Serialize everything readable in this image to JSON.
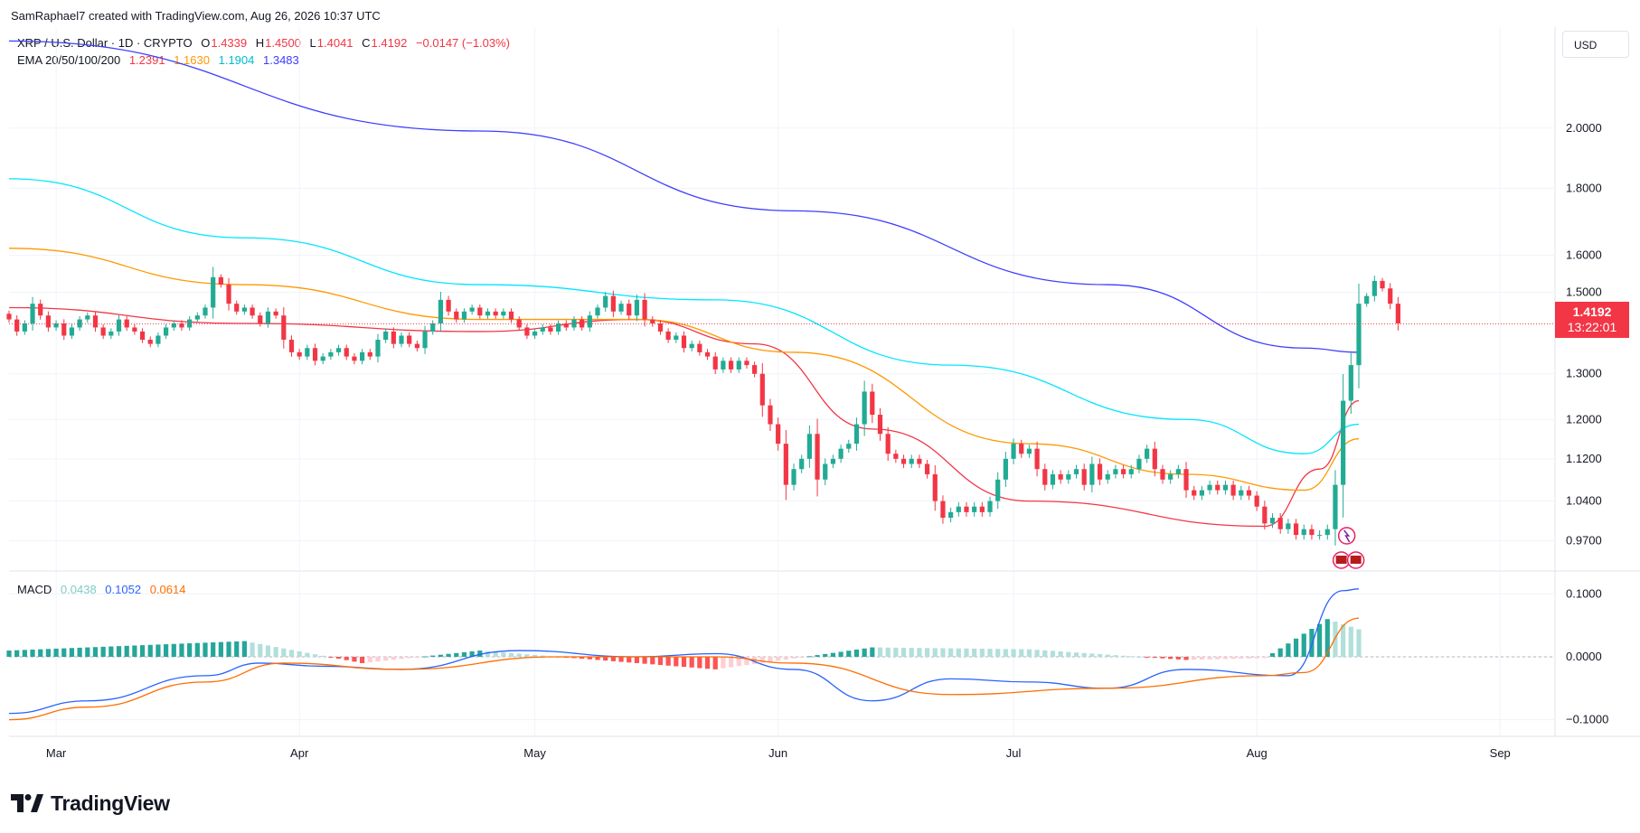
{
  "header": {
    "attribution": "SamRaphael7 created with TradingView.com, Aug 26, 2026 10:37 UTC"
  },
  "legend": {
    "symbol": "XRP / U.S. Dollar · 1D · CRYPTO",
    "open_label": "O",
    "open": "1.4339",
    "high_label": "H",
    "high": "1.4500",
    "low_label": "L",
    "low": "1.4041",
    "close_label": "C",
    "close": "1.4192",
    "change": "−0.0147 (−1.03%)",
    "ema_label": "EMA 20/50/100/200",
    "ema20": "1.2391",
    "ema50": "1.1630",
    "ema100": "1.1904",
    "ema200": "1.3483"
  },
  "macd_legend": {
    "label": "MACD",
    "hist": "0.0438",
    "macd": "0.1052",
    "signal": "0.0614"
  },
  "currency": "USD",
  "price_tag": {
    "price": "1.4192",
    "countdown": "13:22:01"
  },
  "footer": {
    "brand": "TradingView"
  },
  "colors": {
    "up": "#22ab94",
    "down": "#f23645",
    "ema20": "#f23645",
    "ema50": "#ff9800",
    "ema100": "#00e5ff",
    "ema200": "#3d3dff",
    "macd": "#2962ff",
    "signal": "#ff6d00",
    "hist_up_strong": "#26a69a",
    "hist_up_weak": "#b2dfdb",
    "hist_down_strong": "#ff5252",
    "hist_down_weak": "#ffcdd2"
  },
  "chart_data": [
    {
      "type": "candlestick",
      "title": "XRP / U.S. Dollar · 1D · CRYPTO",
      "scale": "log",
      "ylim": [
        0.92,
        2.35
      ],
      "y_ticks": [
        2.0,
        1.8,
        1.6,
        1.5,
        1.3,
        1.2,
        1.12,
        1.04,
        0.97
      ],
      "y_tick_labels": [
        "2.0000",
        "1.8000",
        "1.6000",
        "1.5000",
        "1.3000",
        "1.2000",
        "1.1200",
        "1.0400",
        "0.9700"
      ],
      "x_range": [
        "2026-02-23",
        "2026-09-08"
      ],
      "x_ticks": [
        "2026-03-01",
        "2026-04-01",
        "2026-05-01",
        "2026-06-01",
        "2026-07-01",
        "2026-08-01",
        "2026-09-01"
      ],
      "x_tick_labels": [
        "Mar",
        "Apr",
        "May",
        "Jun",
        "Jul",
        "Aug",
        "Sep"
      ],
      "ohlc_close": [
        [
          "2026-02-23",
          1.43
        ],
        [
          "2026-02-24",
          1.4
        ],
        [
          "2026-02-25",
          1.42
        ],
        [
          "2026-02-26",
          1.47
        ],
        [
          "2026-02-27",
          1.44
        ],
        [
          "2026-02-28",
          1.41
        ],
        [
          "2026-03-01",
          1.42
        ],
        [
          "2026-03-02",
          1.39
        ],
        [
          "2026-03-03",
          1.41
        ],
        [
          "2026-03-04",
          1.43
        ],
        [
          "2026-03-05",
          1.44
        ],
        [
          "2026-03-06",
          1.41
        ],
        [
          "2026-03-07",
          1.39
        ],
        [
          "2026-03-08",
          1.4
        ],
        [
          "2026-03-09",
          1.43
        ],
        [
          "2026-03-10",
          1.41
        ],
        [
          "2026-03-11",
          1.4
        ],
        [
          "2026-03-12",
          1.38
        ],
        [
          "2026-03-13",
          1.37
        ],
        [
          "2026-03-14",
          1.39
        ],
        [
          "2026-03-15",
          1.41
        ],
        [
          "2026-03-16",
          1.42
        ],
        [
          "2026-03-17",
          1.41
        ],
        [
          "2026-03-18",
          1.43
        ],
        [
          "2026-03-19",
          1.44
        ],
        [
          "2026-03-20",
          1.46
        ],
        [
          "2026-03-21",
          1.54
        ],
        [
          "2026-03-22",
          1.52
        ],
        [
          "2026-03-23",
          1.47
        ],
        [
          "2026-03-24",
          1.45
        ],
        [
          "2026-03-25",
          1.46
        ],
        [
          "2026-03-26",
          1.44
        ],
        [
          "2026-03-27",
          1.42
        ],
        [
          "2026-03-28",
          1.45
        ],
        [
          "2026-03-29",
          1.44
        ],
        [
          "2026-03-30",
          1.38
        ],
        [
          "2026-03-31",
          1.35
        ],
        [
          "2026-04-01",
          1.34
        ],
        [
          "2026-04-02",
          1.36
        ],
        [
          "2026-04-03",
          1.33
        ],
        [
          "2026-04-04",
          1.34
        ],
        [
          "2026-04-05",
          1.35
        ],
        [
          "2026-04-06",
          1.36
        ],
        [
          "2026-04-07",
          1.34
        ],
        [
          "2026-04-08",
          1.33
        ],
        [
          "2026-04-09",
          1.35
        ],
        [
          "2026-04-10",
          1.34
        ],
        [
          "2026-04-11",
          1.38
        ],
        [
          "2026-04-12",
          1.4
        ],
        [
          "2026-04-13",
          1.37
        ],
        [
          "2026-04-14",
          1.39
        ],
        [
          "2026-04-15",
          1.37
        ],
        [
          "2026-04-16",
          1.36
        ],
        [
          "2026-04-17",
          1.4
        ],
        [
          "2026-04-18",
          1.42
        ],
        [
          "2026-04-19",
          1.48
        ],
        [
          "2026-04-20",
          1.45
        ],
        [
          "2026-04-21",
          1.43
        ],
        [
          "2026-04-22",
          1.45
        ],
        [
          "2026-04-23",
          1.46
        ],
        [
          "2026-04-24",
          1.44
        ],
        [
          "2026-04-25",
          1.45
        ],
        [
          "2026-04-26",
          1.44
        ],
        [
          "2026-04-27",
          1.45
        ],
        [
          "2026-04-28",
          1.43
        ],
        [
          "2026-04-29",
          1.41
        ],
        [
          "2026-04-30",
          1.39
        ],
        [
          "2026-05-01",
          1.4
        ],
        [
          "2026-05-02",
          1.41
        ],
        [
          "2026-05-03",
          1.4
        ],
        [
          "2026-05-04",
          1.42
        ],
        [
          "2026-05-05",
          1.41
        ],
        [
          "2026-05-06",
          1.43
        ],
        [
          "2026-05-07",
          1.41
        ],
        [
          "2026-05-08",
          1.44
        ],
        [
          "2026-05-09",
          1.46
        ],
        [
          "2026-05-10",
          1.49
        ],
        [
          "2026-05-11",
          1.45
        ],
        [
          "2026-05-12",
          1.47
        ],
        [
          "2026-05-13",
          1.44
        ],
        [
          "2026-05-14",
          1.48
        ],
        [
          "2026-05-15",
          1.43
        ],
        [
          "2026-05-16",
          1.42
        ],
        [
          "2026-05-17",
          1.4
        ],
        [
          "2026-05-18",
          1.38
        ],
        [
          "2026-05-19",
          1.39
        ],
        [
          "2026-05-20",
          1.36
        ],
        [
          "2026-05-21",
          1.37
        ],
        [
          "2026-05-22",
          1.35
        ],
        [
          "2026-05-23",
          1.34
        ],
        [
          "2026-05-24",
          1.31
        ],
        [
          "2026-05-25",
          1.33
        ],
        [
          "2026-05-26",
          1.31
        ],
        [
          "2026-05-27",
          1.33
        ],
        [
          "2026-05-28",
          1.32
        ],
        [
          "2026-05-29",
          1.3
        ],
        [
          "2026-05-30",
          1.23
        ],
        [
          "2026-05-31",
          1.19
        ],
        [
          "2026-06-01",
          1.15
        ],
        [
          "2026-06-02",
          1.07
        ],
        [
          "2026-06-03",
          1.1
        ],
        [
          "2026-06-04",
          1.12
        ],
        [
          "2026-06-05",
          1.17
        ],
        [
          "2026-06-06",
          1.08
        ],
        [
          "2026-06-07",
          1.11
        ],
        [
          "2026-06-08",
          1.12
        ],
        [
          "2026-06-09",
          1.14
        ],
        [
          "2026-06-10",
          1.15
        ],
        [
          "2026-06-11",
          1.19
        ],
        [
          "2026-06-12",
          1.26
        ],
        [
          "2026-06-13",
          1.21
        ],
        [
          "2026-06-14",
          1.17
        ],
        [
          "2026-06-15",
          1.13
        ],
        [
          "2026-06-16",
          1.12
        ],
        [
          "2026-06-17",
          1.11
        ],
        [
          "2026-06-18",
          1.12
        ],
        [
          "2026-06-19",
          1.11
        ],
        [
          "2026-06-20",
          1.09
        ],
        [
          "2026-06-21",
          1.04
        ],
        [
          "2026-06-22",
          1.01
        ],
        [
          "2026-06-23",
          1.02
        ],
        [
          "2026-06-24",
          1.03
        ],
        [
          "2026-06-25",
          1.02
        ],
        [
          "2026-06-26",
          1.03
        ],
        [
          "2026-06-27",
          1.02
        ],
        [
          "2026-06-28",
          1.04
        ],
        [
          "2026-06-29",
          1.08
        ],
        [
          "2026-06-30",
          1.12
        ],
        [
          "2026-07-01",
          1.15
        ],
        [
          "2026-07-02",
          1.13
        ],
        [
          "2026-07-03",
          1.14
        ],
        [
          "2026-07-04",
          1.1
        ],
        [
          "2026-07-05",
          1.07
        ],
        [
          "2026-07-06",
          1.09
        ],
        [
          "2026-07-07",
          1.08
        ],
        [
          "2026-07-08",
          1.09
        ],
        [
          "2026-07-09",
          1.1
        ],
        [
          "2026-07-10",
          1.07
        ],
        [
          "2026-07-11",
          1.11
        ],
        [
          "2026-07-12",
          1.08
        ],
        [
          "2026-07-13",
          1.09
        ],
        [
          "2026-07-14",
          1.1
        ],
        [
          "2026-07-15",
          1.09
        ],
        [
          "2026-07-16",
          1.1
        ],
        [
          "2026-07-17",
          1.12
        ],
        [
          "2026-07-18",
          1.14
        ],
        [
          "2026-07-19",
          1.1
        ],
        [
          "2026-07-20",
          1.08
        ],
        [
          "2026-07-21",
          1.09
        ],
        [
          "2026-07-22",
          1.1
        ],
        [
          "2026-07-23",
          1.06
        ],
        [
          "2026-07-24",
          1.05
        ],
        [
          "2026-07-25",
          1.06
        ],
        [
          "2026-07-26",
          1.07
        ],
        [
          "2026-07-27",
          1.06
        ],
        [
          "2026-07-28",
          1.07
        ],
        [
          "2026-07-29",
          1.05
        ],
        [
          "2026-07-30",
          1.06
        ],
        [
          "2026-07-31",
          1.05
        ],
        [
          "2026-08-01",
          1.03
        ],
        [
          "2026-08-02",
          1.0
        ],
        [
          "2026-08-03",
          1.01
        ],
        [
          "2026-08-04",
          0.99
        ],
        [
          "2026-08-05",
          1.0
        ],
        [
          "2026-08-06",
          0.98
        ],
        [
          "2026-08-07",
          0.99
        ],
        [
          "2026-08-08",
          0.98
        ],
        [
          "2026-08-09",
          0.98
        ],
        [
          "2026-08-10",
          0.99
        ],
        [
          "2026-08-11",
          1.07
        ],
        [
          "2026-08-12",
          1.24
        ],
        [
          "2026-08-13",
          1.32
        ],
        [
          "2026-08-14",
          1.47
        ],
        [
          "2026-08-15",
          1.49
        ],
        [
          "2026-08-16",
          1.53
        ],
        [
          "2026-08-17",
          1.51
        ],
        [
          "2026-08-18",
          1.47
        ],
        [
          "2026-08-19",
          1.42
        ]
      ],
      "series": [
        {
          "name": "EMA 20",
          "values": [
            [
              0,
              1.46
            ],
            [
              30,
              1.42
            ],
            [
              60,
              1.4
            ],
            [
              80,
              1.43
            ],
            [
              95,
              1.37
            ],
            [
              110,
              1.18
            ],
            [
              130,
              1.04
            ],
            [
              160,
              0.995
            ],
            [
              167,
              1.1
            ],
            [
              172,
              1.24
            ]
          ]
        },
        {
          "name": "EMA 50",
          "values": [
            [
              0,
              1.62
            ],
            [
              30,
              1.52
            ],
            [
              60,
              1.43
            ],
            [
              80,
              1.43
            ],
            [
              100,
              1.35
            ],
            [
              130,
              1.15
            ],
            [
              150,
              1.09
            ],
            [
              165,
              1.06
            ],
            [
              172,
              1.16
            ]
          ]
        },
        {
          "name": "EMA 100",
          "values": [
            [
              0,
              1.83
            ],
            [
              30,
              1.65
            ],
            [
              60,
              1.52
            ],
            [
              90,
              1.48
            ],
            [
              120,
              1.32
            ],
            [
              150,
              1.2
            ],
            [
              165,
              1.13
            ],
            [
              172,
              1.19
            ]
          ]
        },
        {
          "name": "EMA 200",
          "values": [
            [
              0,
              2.33
            ],
            [
              60,
              1.99
            ],
            [
              100,
              1.73
            ],
            [
              140,
              1.52
            ],
            [
              165,
              1.36
            ],
            [
              172,
              1.35
            ]
          ]
        }
      ]
    },
    {
      "type": "bar+line",
      "title": "MACD",
      "ylim": [
        -0.125,
        0.125
      ],
      "y_ticks": [
        0.1,
        0.0,
        -0.1
      ],
      "y_tick_labels": [
        "0.1000",
        "0.0000",
        "−0.1000"
      ],
      "series": [
        {
          "name": "MACD",
          "values": [
            [
              0,
              -0.09
            ],
            [
              10,
              -0.07
            ],
            [
              25,
              -0.03
            ],
            [
              32,
              -0.01
            ],
            [
              40,
              -0.015
            ],
            [
              50,
              -0.02
            ],
            [
              65,
              0.01
            ],
            [
              80,
              0.0
            ],
            [
              90,
              0.005
            ],
            [
              100,
              -0.02
            ],
            [
              110,
              -0.07
            ],
            [
              120,
              -0.035
            ],
            [
              130,
              -0.04
            ],
            [
              140,
              -0.05
            ],
            [
              150,
              -0.02
            ],
            [
              163,
              -0.03
            ],
            [
              170,
              0.1052
            ],
            [
              172,
              0.108
            ]
          ]
        },
        {
          "name": "Signal",
          "values": [
            [
              0,
              -0.1
            ],
            [
              10,
              -0.08
            ],
            [
              25,
              -0.04
            ],
            [
              35,
              -0.01
            ],
            [
              50,
              -0.02
            ],
            [
              70,
              0.0
            ],
            [
              90,
              0.0
            ],
            [
              100,
              -0.01
            ],
            [
              120,
              -0.06
            ],
            [
              140,
              -0.05
            ],
            [
              160,
              -0.03
            ],
            [
              165,
              -0.025
            ],
            [
              172,
              0.0614
            ]
          ]
        },
        {
          "name": "Histogram",
          "values": [
            [
              0,
              0.01
            ],
            [
              30,
              0.025
            ],
            [
              45,
              -0.01
            ],
            [
              60,
              0.01
            ],
            [
              90,
              -0.02
            ],
            [
              110,
              0.015
            ],
            [
              130,
              0.012
            ],
            [
              150,
              -0.005
            ],
            [
              160,
              -0.002
            ],
            [
              168,
              0.06
            ],
            [
              172,
              0.0438
            ]
          ]
        }
      ]
    }
  ]
}
